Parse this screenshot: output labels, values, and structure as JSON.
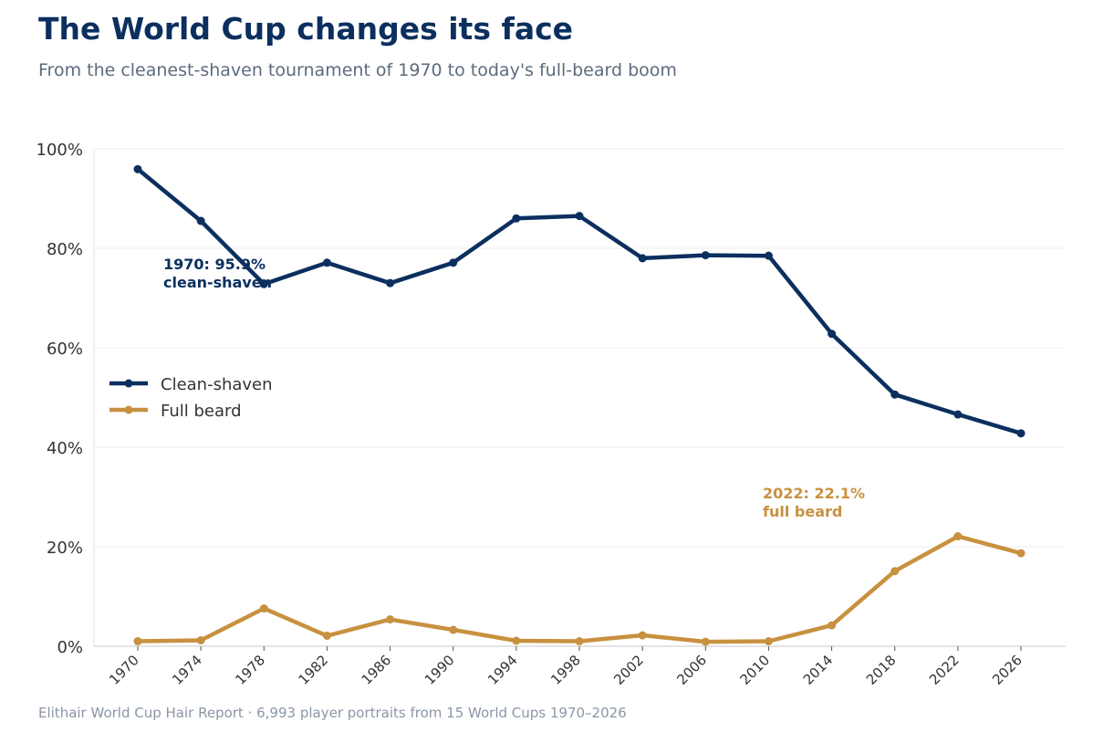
{
  "title": "The World Cup changes its face",
  "subtitle": "From the cleanest-shaven tournament of 1970 to today's full-beard boom",
  "source": "Elithair World Cup Hair Report  ·  6,993 player portraits from 15 World Cups 1970–2026",
  "chart_data": {
    "type": "line",
    "x": [
      "1970",
      "1974",
      "1978",
      "1982",
      "1986",
      "1990",
      "1994",
      "1998",
      "2002",
      "2006",
      "2010",
      "2014",
      "2018",
      "2022",
      "2026"
    ],
    "ylim": [
      0,
      100
    ],
    "yticks": [
      "0%",
      "20%",
      "40%",
      "60%",
      "80%",
      "100%"
    ],
    "ytick_values": [
      0,
      20,
      40,
      60,
      80,
      100
    ],
    "grid": "horizontal",
    "legend_position": "center-left",
    "series": [
      {
        "name": "Clean-shaven",
        "color": "#0b2f5e",
        "values": [
          95.9,
          85.5,
          72.8,
          77.1,
          73.0,
          77.1,
          86.0,
          86.5,
          78.0,
          78.6,
          78.5,
          62.8,
          50.6,
          46.6,
          42.8
        ]
      },
      {
        "name": "Full beard",
        "color": "#c8913f",
        "values": [
          1.0,
          1.2,
          7.6,
          2.1,
          5.4,
          3.3,
          1.1,
          1.0,
          2.2,
          0.9,
          1.0,
          4.2,
          15.1,
          22.1,
          18.7
        ]
      }
    ],
    "annotations": [
      {
        "lines": [
          "1970: 95.9%",
          "clean-shaven"
        ],
        "color": "#0b2f5e"
      },
      {
        "lines": [
          "2022: 22.1%",
          "full beard"
        ],
        "color": "#c8913f"
      }
    ]
  }
}
